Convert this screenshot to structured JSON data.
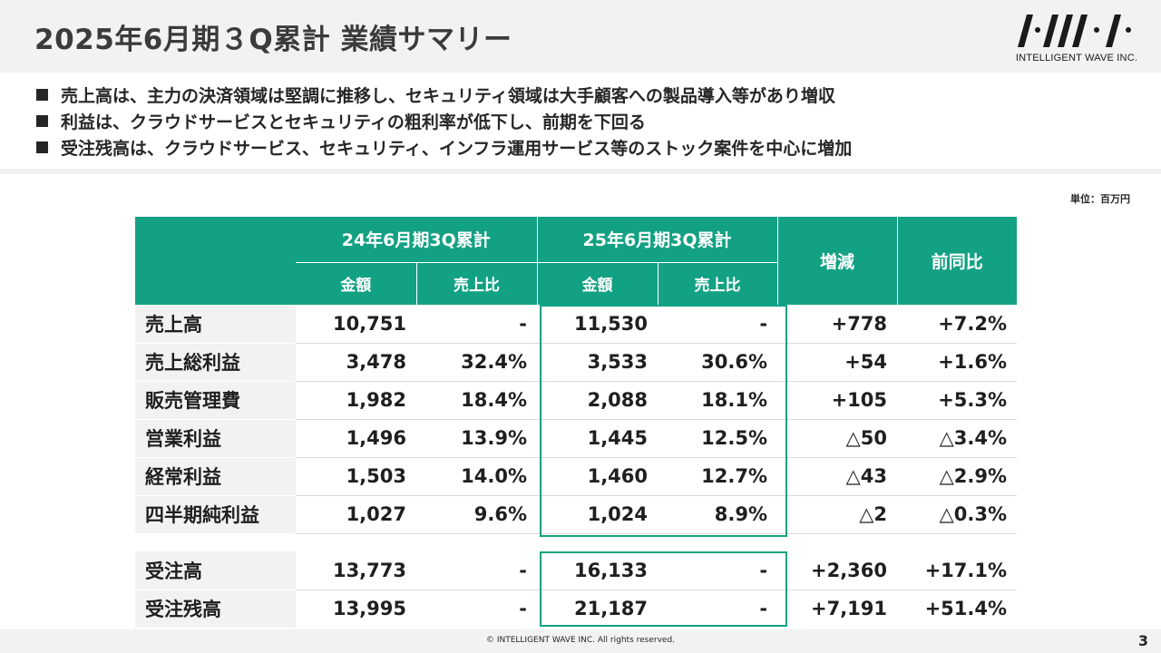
{
  "header": {
    "title": "2025年6月期３Q累計 業績サマリー",
    "logo_text": "INTELLIGENT WAVE INC."
  },
  "bullets": [
    "売上高は、主力の決済領域は堅調に推移し、セキュリティ領域は大手顧客への製品導入等があり増収",
    "利益は、クラウドサービスとセキュリティの粗利率が低下し、前期を下回る",
    "受注残高は、クラウドサービス、セキュリティ、インフラ運用サービス等のストック案件を中心に増加"
  ],
  "unit": "単位：百万円",
  "table": {
    "period_prev": "24年6月期3Q累計",
    "period_curr": "25年6月期3Q累計",
    "col_change": "増減",
    "col_yoy": "前同比",
    "sub_amount": "金額",
    "sub_ratio": "売上比",
    "rows": [
      {
        "label": "売上高",
        "prev_amount": "10,751",
        "prev_ratio": "-",
        "curr_amount": "11,530",
        "curr_ratio": "-",
        "change": "+778",
        "yoy": "+7.2%"
      },
      {
        "label": "売上総利益",
        "prev_amount": "3,478",
        "prev_ratio": "32.4%",
        "curr_amount": "3,533",
        "curr_ratio": "30.6%",
        "change": "+54",
        "yoy": "+1.6%"
      },
      {
        "label": "販売管理費",
        "prev_amount": "1,982",
        "prev_ratio": "18.4%",
        "curr_amount": "2,088",
        "curr_ratio": "18.1%",
        "change": "+105",
        "yoy": "+5.3%"
      },
      {
        "label": "営業利益",
        "prev_amount": "1,496",
        "prev_ratio": "13.9%",
        "curr_amount": "1,445",
        "curr_ratio": "12.5%",
        "change": "△50",
        "yoy": "△3.4%"
      },
      {
        "label": "経常利益",
        "prev_amount": "1,503",
        "prev_ratio": "14.0%",
        "curr_amount": "1,460",
        "curr_ratio": "12.7%",
        "change": "△43",
        "yoy": "△2.9%"
      },
      {
        "label": "四半期純利益",
        "prev_amount": "1,027",
        "prev_ratio": "9.6%",
        "curr_amount": "1,024",
        "curr_ratio": "8.9%",
        "change": "△2",
        "yoy": "△0.3%"
      }
    ],
    "order_rows": [
      {
        "label": "受注高",
        "prev_amount": "13,773",
        "prev_ratio": "-",
        "curr_amount": "16,133",
        "curr_ratio": "-",
        "change": "+2,360",
        "yoy": "+17.1%"
      },
      {
        "label": "受注残高",
        "prev_amount": "13,995",
        "prev_ratio": "-",
        "curr_amount": "21,187",
        "curr_ratio": "-",
        "change": "+7,191",
        "yoy": "+51.4%"
      }
    ]
  },
  "footer": {
    "copyright": "© INTELLIGENT WAVE INC. All rights reserved.",
    "page_number": "3"
  },
  "colors": {
    "accent": "#13a183",
    "header_bg": "#f2f2f2",
    "text": "#262626"
  }
}
